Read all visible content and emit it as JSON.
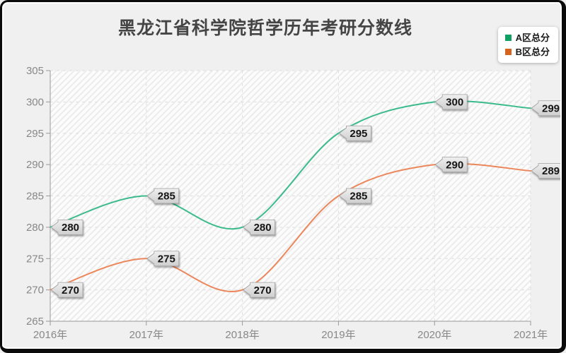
{
  "title": "黑龙江省科学院哲学历年考研分数线",
  "chart_data": {
    "type": "line",
    "title": "黑龙江省科学院哲学历年考研分数线",
    "x": [
      "2016年",
      "2017年",
      "2018年",
      "2019年",
      "2020年",
      "2021年"
    ],
    "series": [
      {
        "name": "A区总分",
        "values": [
          280,
          285,
          280,
          295,
          300,
          299
        ],
        "line_color": "#3bbb8c",
        "marker_color": "#10a064"
      },
      {
        "name": "B区总分",
        "values": [
          270,
          275,
          270,
          285,
          290,
          289
        ],
        "line_color": "#ec875c",
        "marker_color": "#d6641f"
      }
    ],
    "ylim": [
      265,
      305
    ],
    "ytick_step": 5,
    "yticks": [
      265,
      270,
      275,
      280,
      285,
      290,
      295,
      300,
      305
    ],
    "grid": true,
    "smooth": true,
    "legend_position": "top-right",
    "point_labels_visible": true
  },
  "colors": {
    "axis": "#999999",
    "tick_text": "#888888",
    "grid": "#dedede",
    "plot_bg": "#fcfcfc",
    "hatch": "#ececec",
    "label_tag_border": "#9f9f9f",
    "label_tag_text": "#151515",
    "frame_border": "#0b0b0b",
    "canvas_bg": "#f0f0f0",
    "title_text": "#454545"
  }
}
